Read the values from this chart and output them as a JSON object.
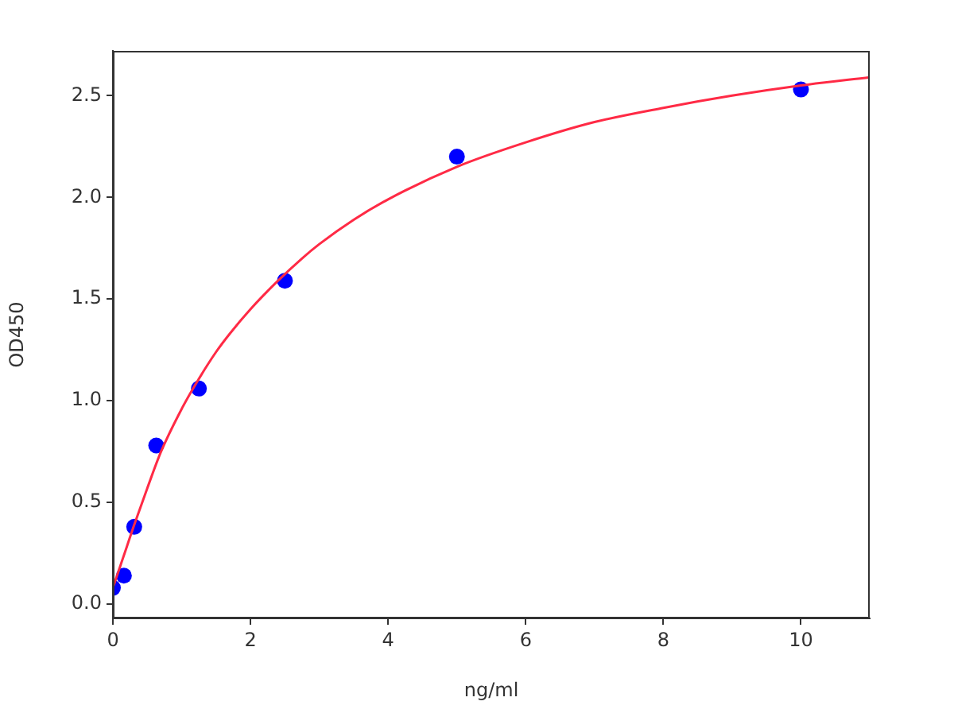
{
  "chart_data": {
    "type": "scatter",
    "xlabel": "ng/ml",
    "ylabel": "OD450",
    "series": [
      {
        "type": "scatter",
        "color": "#0000ff",
        "marker": "circle",
        "x": [
          0,
          0.16,
          0.31,
          0.63,
          1.25,
          2.5,
          5,
          10
        ],
        "values": [
          0.08,
          0.14,
          0.38,
          0.78,
          1.06,
          1.59,
          2.2,
          2.53
        ]
      },
      {
        "type": "line",
        "color": "#ff2a45",
        "marker": "none",
        "line_style": "solid",
        "x": [
          0,
          0.1,
          0.2,
          0.3,
          0.5,
          0.7,
          1,
          1.2,
          1.5,
          1.7,
          2,
          2.4,
          2.75,
          3,
          3.5,
          4,
          5,
          6,
          7,
          8,
          9,
          10,
          11
        ],
        "values": [
          0.08,
          0.18,
          0.28,
          0.38,
          0.57,
          0.75,
          0.96,
          1.08,
          1.24,
          1.33,
          1.45,
          1.59,
          1.7,
          1.77,
          1.89,
          1.99,
          2.15,
          2.27,
          2.37,
          2.44,
          2.5,
          2.55,
          2.59
        ]
      }
    ],
    "xlim": [
      0,
      11
    ],
    "xticks": [
      0,
      2,
      4,
      6,
      8,
      10
    ],
    "ylim": [
      -0.07,
      2.72
    ],
    "yticks": [
      {
        "value": 0,
        "label": "0.0"
      },
      {
        "value": 0.5,
        "label": "0.5"
      },
      {
        "value": 1,
        "label": "1.0"
      },
      {
        "value": 1.5,
        "label": "1.5"
      },
      {
        "value": 2,
        "label": "2.0"
      },
      {
        "value": 2.5,
        "label": "2.5"
      }
    ],
    "grid": false,
    "legend": false
  }
}
